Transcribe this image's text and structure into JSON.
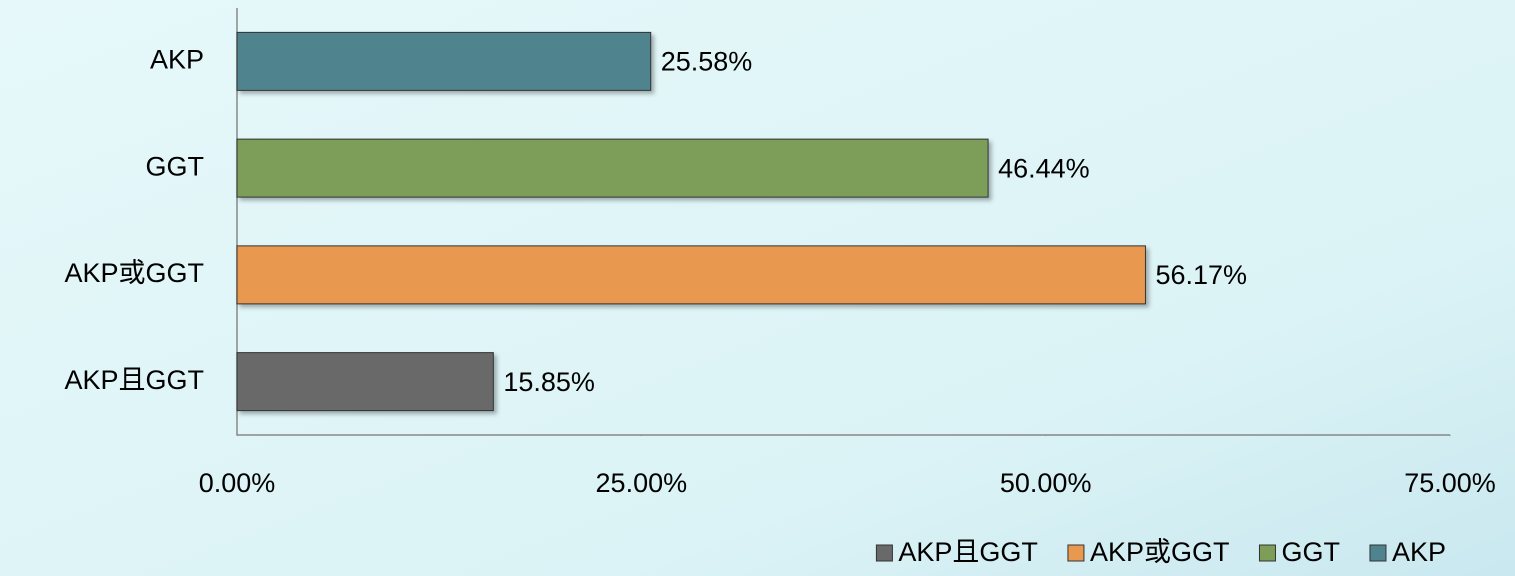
{
  "chart_data": {
    "type": "bar",
    "orientation": "horizontal",
    "categories": [
      "AKP",
      "GGT",
      "AKP或GGT",
      "AKP且GGT"
    ],
    "series": [
      {
        "name": "AKP且GGT",
        "color": "#696969",
        "values": [
          null,
          null,
          null,
          15.85
        ],
        "value_labels": [
          null,
          null,
          null,
          "15.85%"
        ]
      },
      {
        "name": "AKP或GGT",
        "color": "#e8994f",
        "values": [
          null,
          null,
          56.17,
          null
        ],
        "value_labels": [
          null,
          null,
          "56.17%",
          null
        ]
      },
      {
        "name": "GGT",
        "color": "#7d9e59",
        "values": [
          null,
          46.44,
          null,
          null
        ],
        "value_labels": [
          null,
          "46.44%",
          null,
          null
        ]
      },
      {
        "name": "AKP",
        "color": "#4f848e",
        "values": [
          25.58,
          null,
          null,
          null
        ],
        "value_labels": [
          "25.58%",
          null,
          null,
          null
        ]
      }
    ],
    "xlim": [
      0,
      75
    ],
    "xticks": [
      {
        "value": 0,
        "label": "0.00%"
      },
      {
        "value": 25,
        "label": "25.00%"
      },
      {
        "value": 50,
        "label": "50.00%"
      },
      {
        "value": 75,
        "label": "75.00%"
      }
    ],
    "legend": "bottom-right",
    "grid": false
  }
}
